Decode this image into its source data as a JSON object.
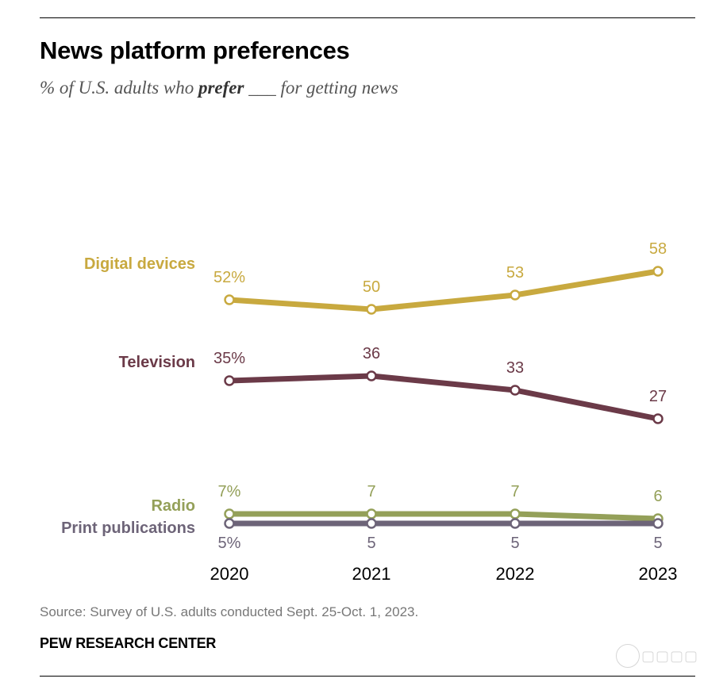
{
  "header": {
    "title": "News platform preferences",
    "subtitle_pre": "% of U.S. adults who ",
    "subtitle_bold": "prefer",
    "subtitle_post": " ___ for getting news"
  },
  "footer": {
    "source": "Source: Survey of U.S. adults conducted Sept. 25-Oct. 1, 2023.",
    "brand": "PEW RESEARCH CENTER"
  },
  "chart_data": {
    "type": "line",
    "title": "News platform preferences",
    "subtitle": "% of U.S. adults who prefer ___ for getting news",
    "x": [
      "2020",
      "2021",
      "2022",
      "2023"
    ],
    "ylabel": "",
    "xlabel": "",
    "grid": false,
    "legend": "left-of-lines",
    "series": [
      {
        "name": "Digital devices",
        "values": [
          52,
          50,
          53,
          58
        ],
        "labels": [
          "52%",
          "50",
          "53",
          "58"
        ],
        "color": "#c8a93f",
        "label_position": "above"
      },
      {
        "name": "Television",
        "values": [
          35,
          36,
          33,
          27
        ],
        "labels": [
          "35%",
          "36",
          "33",
          "27"
        ],
        "color": "#6b3a48",
        "label_position": "above"
      },
      {
        "name": "Radio",
        "values": [
          7,
          7,
          7,
          6
        ],
        "labels": [
          "7%",
          "7",
          "7",
          "6"
        ],
        "color": "#94a059",
        "label_position": "above"
      },
      {
        "name": "Print publications",
        "values": [
          5,
          5,
          5,
          5
        ],
        "labels": [
          "5%",
          "5",
          "5",
          "5"
        ],
        "color": "#6d6478",
        "label_position": "below"
      }
    ]
  }
}
